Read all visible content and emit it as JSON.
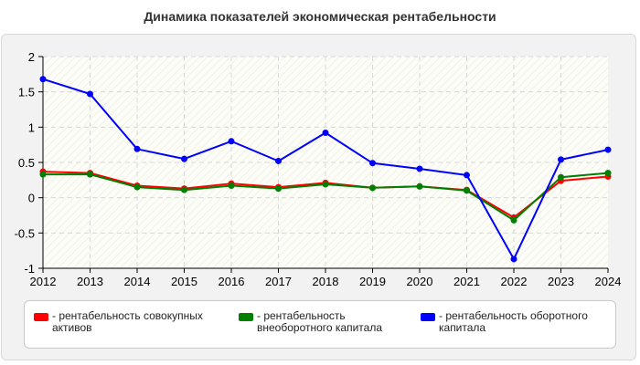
{
  "title": "Динамика показателей экономическая рентабельности",
  "legend": {
    "items": [
      {
        "label": "- рентабельность совокупных активов",
        "color": "#ff0000"
      },
      {
        "label": "- рентабельность внеоборотного капитала",
        "color": "#008000"
      },
      {
        "label": "- рентабельность оборотного капитала",
        "color": "#0000ff"
      }
    ]
  },
  "chart_data": {
    "type": "line",
    "title": "Динамика показателей экономическая рентабельности",
    "x": [
      "2012",
      "2013",
      "2014",
      "2015",
      "2016",
      "2017",
      "2018",
      "2019",
      "2020",
      "2021",
      "2022",
      "2023",
      "2024"
    ],
    "ylim": [
      -1,
      2
    ],
    "yticks": [
      "2",
      "1.5",
      "1",
      "0.5",
      "0",
      "-0.5",
      "-1"
    ],
    "grid": true,
    "legend_position": "bottom",
    "series": [
      {
        "name": "- рентабельность совокупных активов",
        "color": "#ff0000",
        "values": [
          0.37,
          0.35,
          0.17,
          0.13,
          0.2,
          0.15,
          0.21,
          0.14,
          0.16,
          0.11,
          -0.28,
          0.24,
          0.3
        ]
      },
      {
        "name": "- рентабельность внеоборотного капитала",
        "color": "#008000",
        "values": [
          0.33,
          0.33,
          0.15,
          0.11,
          0.17,
          0.13,
          0.19,
          0.14,
          0.16,
          0.1,
          -0.32,
          0.29,
          0.35
        ]
      },
      {
        "name": "- рентабельность оборотного капитала",
        "color": "#0000ff",
        "values": [
          1.68,
          1.47,
          0.69,
          0.55,
          0.8,
          0.52,
          0.92,
          0.49,
          0.41,
          0.32,
          -0.87,
          0.54,
          0.68
        ]
      }
    ]
  }
}
